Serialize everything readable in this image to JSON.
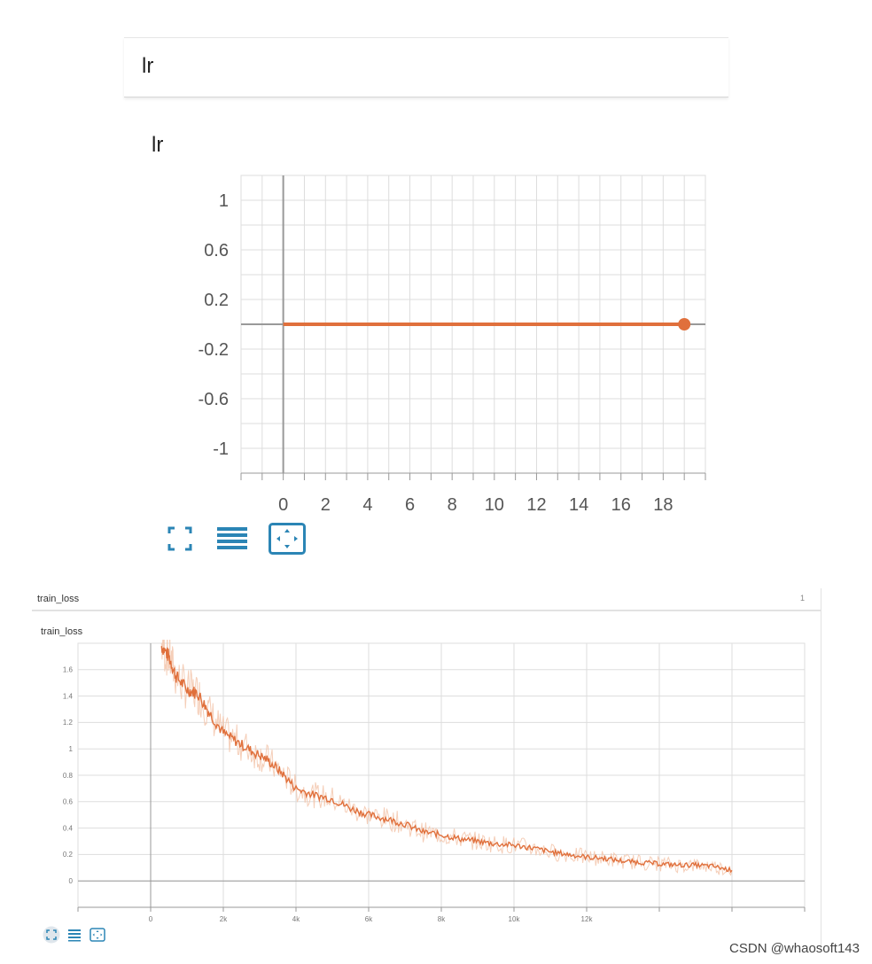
{
  "panel1": {
    "header_title": "lr"
  },
  "panel2": {
    "header_title": "train_loss",
    "header_badge": "1"
  },
  "watermark": "CSDN @whaosoft143",
  "colors": {
    "series": "#e0703c",
    "grid": "#dddddd",
    "axis": "#999999",
    "toolbar": "#2b85b5"
  },
  "toolbar_icons": [
    "fullscreen-icon",
    "data-list-icon",
    "fit-domain-icon"
  ],
  "chart_data": [
    {
      "type": "line",
      "title": "lr",
      "xlabel": "",
      "ylabel": "",
      "x_ticks": [
        "0",
        "2",
        "4",
        "6",
        "8",
        "10",
        "12",
        "14",
        "16",
        "18"
      ],
      "y_ticks": [
        "1",
        "0.6",
        "0.2",
        "-0.2",
        "-0.6",
        "-1"
      ],
      "xlim": [
        -2,
        20
      ],
      "ylim": [
        -1.2,
        1.2
      ],
      "grid": true,
      "series": [
        {
          "x": [
            0,
            19
          ],
          "y": [
            0,
            0
          ],
          "endpoint_marker": true
        }
      ]
    },
    {
      "type": "line",
      "title": "train_loss",
      "xlabel": "",
      "ylabel": "",
      "x_ticks": [
        "0",
        "2k",
        "4k",
        "6k",
        "8k",
        "10k",
        "12k"
      ],
      "y_ticks": [
        "1.6",
        "1.4",
        "1.2",
        "1",
        "0.8",
        "0.6",
        "0.4",
        "0.2",
        "0"
      ],
      "xlim": [
        -2000,
        18000
      ],
      "ylim": [
        -0.2,
        1.8
      ],
      "grid": true,
      "series": [
        {
          "x": [
            300,
            500,
            700,
            1000,
            1300,
            1600,
            2000,
            2400,
            2800,
            3200,
            3600,
            4000,
            4500,
            5000,
            5500,
            6000,
            6500,
            7000,
            7500,
            8000,
            8500,
            9000,
            9500,
            10000,
            10500,
            11000,
            11500,
            12000,
            12500,
            13000,
            13500,
            14000,
            14500,
            15000,
            15500,
            16000
          ],
          "y": [
            1.78,
            1.7,
            1.55,
            1.45,
            1.42,
            1.28,
            1.12,
            1.05,
            0.98,
            0.92,
            0.82,
            0.7,
            0.65,
            0.62,
            0.55,
            0.5,
            0.47,
            0.43,
            0.37,
            0.35,
            0.32,
            0.3,
            0.28,
            0.27,
            0.25,
            0.22,
            0.2,
            0.18,
            0.17,
            0.15,
            0.14,
            0.13,
            0.12,
            0.12,
            0.11,
            0.08
          ]
        }
      ]
    }
  ]
}
